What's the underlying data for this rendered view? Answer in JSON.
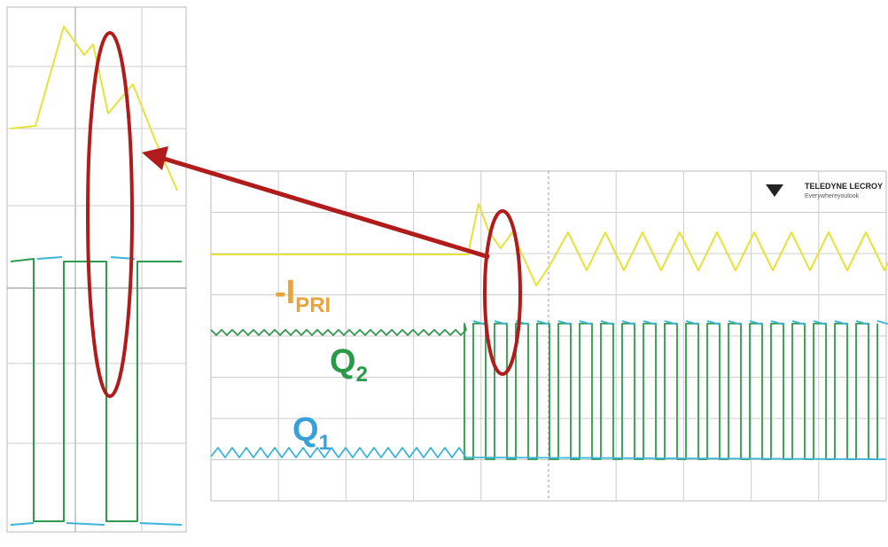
{
  "labels": {
    "current": {
      "main": "-I",
      "sub": "PRI"
    },
    "q2": {
      "main": "Q",
      "sub": "2"
    },
    "q1": {
      "main": "Q",
      "sub": "1"
    }
  },
  "logo": {
    "brand": "TELEDYNE LECROY",
    "tagline": "Everywhereyoulook"
  }
}
